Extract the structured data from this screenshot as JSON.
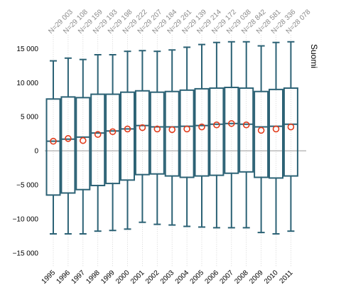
{
  "chart_data": {
    "type": "boxplot",
    "panel_label": "Suomi",
    "categories": [
      "1995",
      "1996",
      "1997",
      "1998",
      "1999",
      "2000",
      "2001",
      "2002",
      "2003",
      "2004",
      "2005",
      "2006",
      "2007",
      "2008",
      "2009",
      "2010",
      "2011"
    ],
    "n_labels": [
      "N=29 003",
      "N=29 108",
      "N=29 159",
      "N=29 193",
      "N=29 198",
      "N=29 222",
      "N=29 207",
      "N=29 184",
      "N=29 261",
      "N=29 139",
      "N=29 214",
      "N=29 172",
      "N=29 038",
      "N=28 842",
      "N=28 581",
      "N=28 336",
      "N=28 078"
    ],
    "whisker_low": [
      -12200,
      -12200,
      -12200,
      -11800,
      -11700,
      -11500,
      -10500,
      -10800,
      -10900,
      -11100,
      -11200,
      -11300,
      -11300,
      -11300,
      -12000,
      -12200,
      -11800
    ],
    "q1": [
      -6500,
      -6200,
      -5700,
      -5100,
      -4800,
      -4300,
      -3500,
      -3400,
      -3700,
      -3900,
      -3700,
      -3600,
      -3300,
      -3100,
      -3900,
      -4000,
      -3700
    ],
    "median": [
      1400,
      1700,
      2000,
      2600,
      2900,
      3200,
      3700,
      3500,
      3500,
      3600,
      3700,
      3900,
      4000,
      3900,
      3500,
      3600,
      3900
    ],
    "q3": [
      7600,
      7900,
      7800,
      8300,
      8300,
      8600,
      8800,
      8600,
      8700,
      8900,
      9100,
      9200,
      9300,
      9200,
      8700,
      9000,
      9200
    ],
    "whisker_high": [
      13200,
      13600,
      13400,
      14100,
      14100,
      14600,
      14700,
      14600,
      14800,
      15200,
      15600,
      15900,
      16000,
      16000,
      15400,
      15900,
      16000
    ],
    "mean": [
      1400,
      1800,
      1500,
      2400,
      2800,
      3200,
      3400,
      3200,
      3100,
      3200,
      3500,
      3800,
      4000,
      3800,
      3000,
      3200,
      3500
    ],
    "y_ticks": [
      15000,
      10000,
      5000,
      0,
      -5000,
      -10000,
      -15000
    ],
    "y_tick_labels": [
      "15 000",
      "10 000",
      "5 000",
      "0",
      "−5 000",
      "−10 000",
      "−15 000"
    ],
    "ylim": [
      -17000,
      17000
    ],
    "reference_line": 0,
    "grid": true,
    "colors": {
      "box": "#2c6275",
      "mean_marker": "#e23b1b",
      "zero_line": "#999999",
      "grid": "#cccccc",
      "n_label": "#8a8a8a"
    }
  }
}
